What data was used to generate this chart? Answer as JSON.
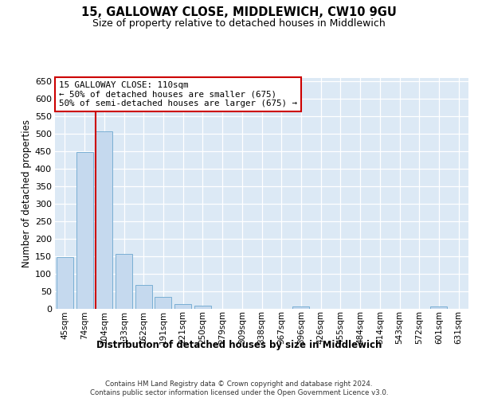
{
  "title": "15, GALLOWAY CLOSE, MIDDLEWICH, CW10 9GU",
  "subtitle": "Size of property relative to detached houses in Middlewich",
  "xlabel": "Distribution of detached houses by size in Middlewich",
  "ylabel": "Number of detached properties",
  "categories": [
    "45sqm",
    "74sqm",
    "104sqm",
    "133sqm",
    "162sqm",
    "191sqm",
    "221sqm",
    "250sqm",
    "279sqm",
    "309sqm",
    "338sqm",
    "367sqm",
    "396sqm",
    "426sqm",
    "455sqm",
    "484sqm",
    "514sqm",
    "543sqm",
    "572sqm",
    "601sqm",
    "631sqm"
  ],
  "values": [
    147,
    447,
    507,
    157,
    68,
    32,
    12,
    7,
    0,
    0,
    0,
    0,
    6,
    0,
    0,
    0,
    0,
    0,
    0,
    5,
    0
  ],
  "bar_color": "#c5d9ee",
  "bar_edge_color": "#7aafd4",
  "vline_bar_index": 2,
  "vline_color": "#cc0000",
  "annotation_line1": "15 GALLOWAY CLOSE: 110sqm",
  "annotation_line2": "← 50% of detached houses are smaller (675)",
  "annotation_line3": "50% of semi-detached houses are larger (675) →",
  "annotation_box_facecolor": "#ffffff",
  "annotation_box_edgecolor": "#cc0000",
  "ylim_max": 660,
  "ytick_step": 50,
  "bg_color": "#dce9f5",
  "footer": "Contains HM Land Registry data © Crown copyright and database right 2024.\nContains public sector information licensed under the Open Government Licence v3.0."
}
